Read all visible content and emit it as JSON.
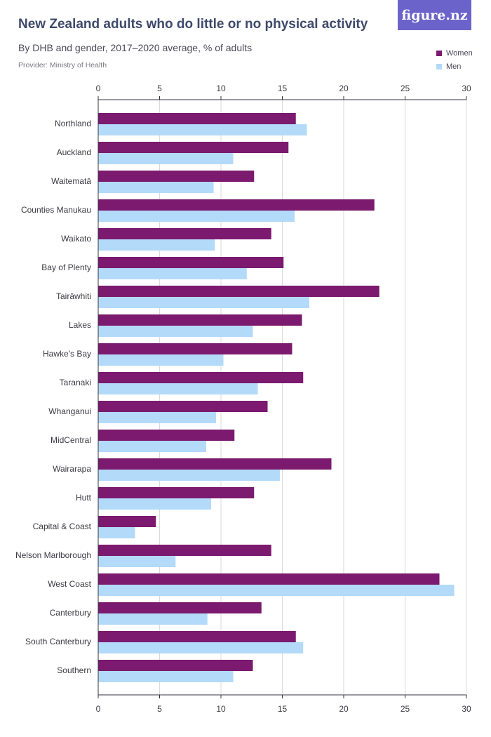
{
  "header": {
    "title": "New Zealand adults who do little or no physical activity",
    "subtitle": "By DHB and gender, 2017–2020 average, % of adults",
    "provider": "Provider: Ministry of Health",
    "logo_text": "figure.nz"
  },
  "colors": {
    "women": "#7b1a6e",
    "men": "#b3daf9",
    "grid": "#d9d9df",
    "axis": "#333340"
  },
  "chart_data": {
    "type": "bar",
    "orientation": "horizontal",
    "title": "New Zealand adults who do little or no physical activity",
    "subtitle": "By DHB and gender, 2017–2020 average, % of adults",
    "xlabel": "",
    "ylabel": "",
    "xlim": [
      0,
      30
    ],
    "xticks": [
      0,
      5,
      10,
      15,
      20,
      25,
      30
    ],
    "legend_position": "top-right",
    "grid": true,
    "categories": [
      "Northland",
      "Auckland",
      "Waitematā",
      "Counties Manukau",
      "Waikato",
      "Bay of Plenty",
      "Tairāwhiti",
      "Lakes",
      "Hawke's Bay",
      "Taranaki",
      "Whanganui",
      "MidCentral",
      "Wairarapa",
      "Hutt",
      "Capital & Coast",
      "Nelson Marlborough",
      "West Coast",
      "Canterbury",
      "South Canterbury",
      "Southern"
    ],
    "series": [
      {
        "name": "Women",
        "values": [
          16.1,
          15.5,
          12.7,
          22.5,
          14.1,
          15.1,
          22.9,
          16.6,
          15.8,
          16.7,
          13.8,
          11.1,
          19.0,
          12.7,
          4.7,
          14.1,
          27.8,
          13.3,
          16.1,
          12.6
        ]
      },
      {
        "name": "Men",
        "values": [
          17.0,
          11.0,
          9.4,
          16.0,
          9.5,
          12.1,
          17.2,
          12.6,
          10.2,
          13.0,
          9.6,
          8.8,
          14.8,
          9.2,
          3.0,
          6.3,
          29.0,
          8.9,
          16.7,
          11.0
        ]
      }
    ]
  }
}
